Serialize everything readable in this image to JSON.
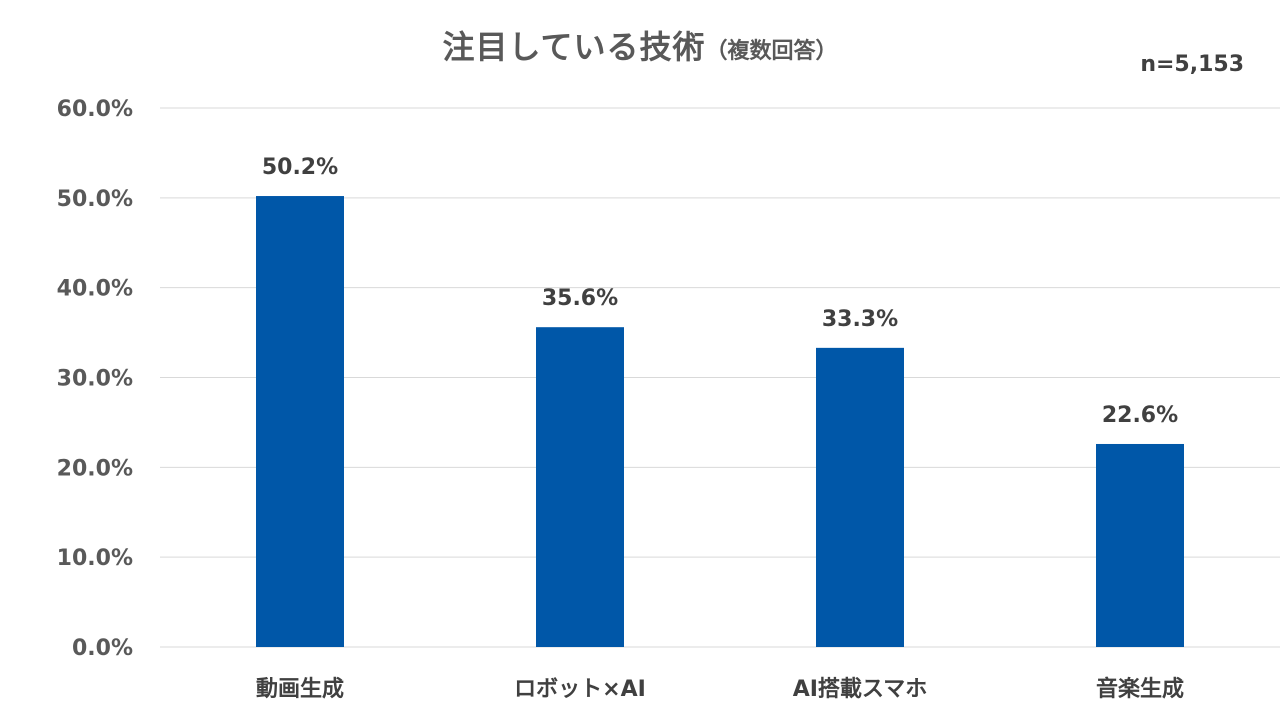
{
  "chart_data": {
    "type": "bar",
    "title": "注目している技術",
    "subtitle": "（複数回答）",
    "sample_size": "n=5,153",
    "categories": [
      "動画生成",
      "ロボット×AI",
      "AI搭載スマホ",
      "音楽生成"
    ],
    "values": [
      50.2,
      35.6,
      33.3,
      22.6
    ],
    "data_labels": [
      "50.2%",
      "35.6%",
      "33.3%",
      "22.6%"
    ],
    "y_ticks": [
      0,
      10,
      20,
      30,
      40,
      50,
      60
    ],
    "y_tick_labels": [
      "0.0%",
      "10.0%",
      "20.0%",
      "30.0%",
      "40.0%",
      "50.0%",
      "60.0%"
    ],
    "ylim": [
      0,
      60
    ],
    "grid": true,
    "bar_color": "#0057a8",
    "grid_color": "#d9d9d9"
  }
}
